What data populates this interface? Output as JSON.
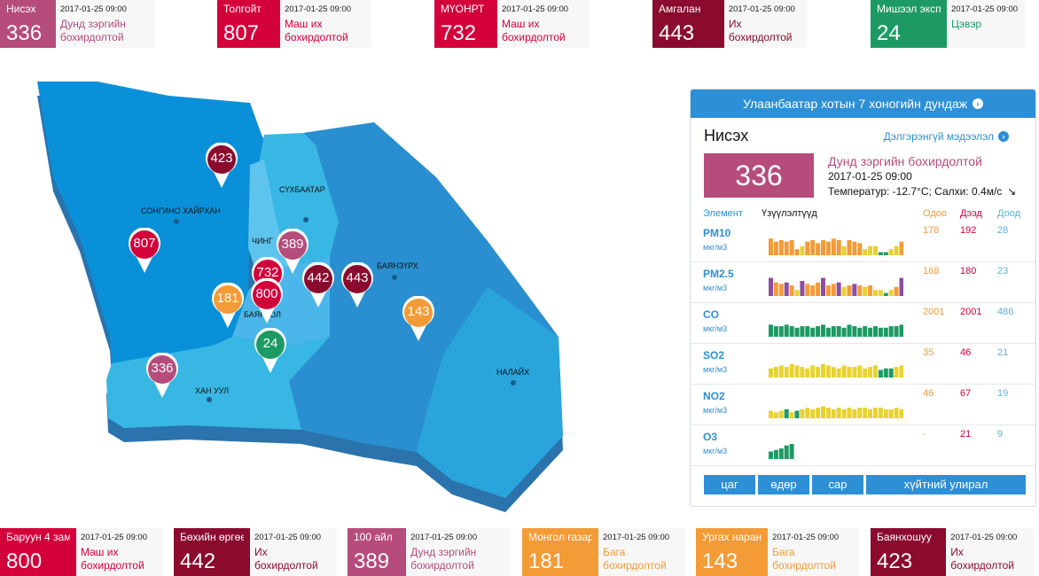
{
  "colors": {
    "unhealthy_sensitive": "#b64c7b",
    "very_unhealthy": "#d4003a",
    "hazardous": "#8a0b2e",
    "good": "#1d9a64",
    "moderate": "#f39b37",
    "accent": "#2d8fd6"
  },
  "top_cards": [
    {
      "name": "Нисэх",
      "aqi": "336",
      "time": "2017-01-25 09:00",
      "status": "Дунд зэргийн бохирдолтой",
      "color": "#b64c7b"
    },
    {
      "name": "Толгойт",
      "aqi": "807",
      "time": "2017-01-25 09:00",
      "status": "Маш их бохирдолтой",
      "color": "#d4003a"
    },
    {
      "name": "МҮОНРТ",
      "aqi": "732",
      "time": "2017-01-25 09:00",
      "status": "Маш их бохирдолтой",
      "color": "#d4003a"
    },
    {
      "name": "Амгалан",
      "aqi": "443",
      "time": "2017-01-25 09:00",
      "status": "Их бохирдолтой",
      "color": "#8a0b2e"
    },
    {
      "name": "Мишээл экспо",
      "aqi": "24",
      "time": "2017-01-25 09:00",
      "status": "Цэвэр",
      "color": "#1d9a64"
    }
  ],
  "bottom_cards": [
    {
      "name": "Баруун 4 зам",
      "aqi": "800",
      "time": "2017-01-25 09:00",
      "status": "Маш их бохирдолтой",
      "color": "#d4003a"
    },
    {
      "name": "Бөхийн өргөө",
      "aqi": "442",
      "time": "2017-01-25 09:00",
      "status": "Их бохирдолтой",
      "color": "#8a0b2e"
    },
    {
      "name": "100 айл",
      "aqi": "389",
      "time": "2017-01-25 09:00",
      "status": "Дунд зэргийн бохирдолтой",
      "color": "#b64c7b"
    },
    {
      "name": "Монгол газар",
      "aqi": "181",
      "time": "2017-01-25 09:00",
      "status": "Бага бохирдолтой",
      "color": "#f39b37"
    },
    {
      "name": "Ургах наран",
      "aqi": "143",
      "time": "2017-01-25 09:00",
      "status": "Бага бохирдолтой",
      "color": "#f39b37"
    },
    {
      "name": "Баянхошуу",
      "aqi": "423",
      "time": "2017-01-25 09:00",
      "status": "Их бохирдолтой",
      "color": "#8a0b2e"
    }
  ],
  "map": {
    "districts": [
      "СОНГИНО ХАЙРХАН",
      "СҮХБААТАР",
      "ЧИНГ",
      "БАЯНЗҮРХ",
      "БАЯНГОЛ",
      "ХАН УУЛ",
      "НАЛАЙХ"
    ],
    "pins": [
      {
        "value": "423",
        "color": "#8a0b2e"
      },
      {
        "value": "807",
        "color": "#d4003a"
      },
      {
        "value": "389",
        "color": "#b64c7b"
      },
      {
        "value": "732",
        "color": "#d4003a"
      },
      {
        "value": "800",
        "color": "#d4003a"
      },
      {
        "value": "442",
        "color": "#8a0b2e"
      },
      {
        "value": "443",
        "color": "#8a0b2e"
      },
      {
        "value": "181",
        "color": "#f39b37"
      },
      {
        "value": "143",
        "color": "#f39b37"
      },
      {
        "value": "24",
        "color": "#1d9a64"
      },
      {
        "value": "336",
        "color": "#b64c7b"
      }
    ]
  },
  "panel": {
    "header": "Улаанбаатар хотын 7 хоногийн дундаж",
    "station": "Нисэх",
    "more_link": "Дэлгэрэнгүй мэдээлэл",
    "aqi": "336",
    "status": "Дунд зэргийн бохирдолтой",
    "time": "2017-01-25 09:00",
    "weather": "Температур: -12.7°C; Салхи: 0.4м/с",
    "headers": {
      "element": "Элемент",
      "indicator": "Үзүүлэлтүүд",
      "current": "Одоо",
      "max": "Дээд",
      "min": "Доод"
    },
    "pollutants": [
      {
        "name": "PM10",
        "unit": "мкг/м3",
        "current": "178",
        "max": "192",
        "min": "28",
        "bars": [
          0.55,
          0.45,
          0.5,
          0.45,
          0.5,
          0.2,
          0.3,
          0.45,
          0.5,
          0.4,
          0.5,
          0.45,
          0.55,
          0.5,
          0.3,
          0.5,
          0.45,
          0.4,
          0.2,
          0.3,
          0.3,
          0.1,
          0.1,
          0.2,
          0.3,
          0.45
        ],
        "bar_colors": [
          "#f39b37",
          "#f39b37",
          "#f39b37",
          "#f39b37",
          "#f39b37",
          "#f39b37",
          "#e8d230",
          "#f39b37",
          "#f39b37",
          "#f39b37",
          "#f39b37",
          "#f39b37",
          "#f39b37",
          "#f39b37",
          "#e8d230",
          "#f39b37",
          "#f39b37",
          "#f39b37",
          "#e8d230",
          "#e8d230",
          "#e8d230",
          "#1d9a64",
          "#1d9a64",
          "#e8d230",
          "#e8d230",
          "#f39b37"
        ]
      },
      {
        "name": "PM2.5",
        "unit": "мкг/м3",
        "current": "168",
        "max": "180",
        "min": "23",
        "bars": [
          0.6,
          0.45,
          0.4,
          0.45,
          0.35,
          0.2,
          0.5,
          0.4,
          0.35,
          0.45,
          0.6,
          0.35,
          0.4,
          0.45,
          0.3,
          0.35,
          0.4,
          0.35,
          0.3,
          0.35,
          0.2,
          0.2,
          0.1,
          0.2,
          0.3,
          0.6
        ],
        "bar_colors": [
          "#8e4ea0",
          "#f39b37",
          "#f39b37",
          "#8e4ea0",
          "#f39b37",
          "#e8d230",
          "#8e4ea0",
          "#f39b37",
          "#f39b37",
          "#f39b37",
          "#8e4ea0",
          "#f39b37",
          "#f39b37",
          "#8e4ea0",
          "#e8d230",
          "#f39b37",
          "#8e4ea0",
          "#f39b37",
          "#e8d230",
          "#f39b37",
          "#e8d230",
          "#e8d230",
          "#1d9a64",
          "#e8d230",
          "#f39b37",
          "#8e4ea0"
        ]
      },
      {
        "name": "CO",
        "unit": "мкг/м3",
        "current": "2001",
        "max": "2001",
        "min": "486",
        "bars": [
          0.4,
          0.35,
          0.35,
          0.4,
          0.35,
          0.3,
          0.35,
          0.35,
          0.3,
          0.35,
          0.4,
          0.3,
          0.35,
          0.35,
          0.3,
          0.4,
          0.35,
          0.3,
          0.35,
          0.3,
          0.35,
          0.3,
          0.3,
          0.35,
          0.35,
          0.4
        ],
        "bar_colors": [
          "#1d9a64",
          "#1d9a64",
          "#1d9a64",
          "#1d9a64",
          "#1d9a64",
          "#1d9a64",
          "#1d9a64",
          "#1d9a64",
          "#1d9a64",
          "#1d9a64",
          "#1d9a64",
          "#1d9a64",
          "#1d9a64",
          "#1d9a64",
          "#1d9a64",
          "#1d9a64",
          "#1d9a64",
          "#1d9a64",
          "#1d9a64",
          "#1d9a64",
          "#1d9a64",
          "#1d9a64",
          "#1d9a64",
          "#1d9a64",
          "#1d9a64",
          "#1d9a64"
        ]
      },
      {
        "name": "SO2",
        "unit": "мкг/м3",
        "current": "35",
        "max": "46",
        "min": "21",
        "bars": [
          0.3,
          0.35,
          0.4,
          0.35,
          0.45,
          0.4,
          0.35,
          0.3,
          0.4,
          0.35,
          0.45,
          0.4,
          0.35,
          0.3,
          0.4,
          0.35,
          0.35,
          0.4,
          0.3,
          0.35,
          0.4,
          0.25,
          0.3,
          0.3,
          0.35,
          0.4
        ],
        "bar_colors": [
          "#e8d230",
          "#e8d230",
          "#e8d230",
          "#e8d230",
          "#e8d230",
          "#e8d230",
          "#e8d230",
          "#e8d230",
          "#e8d230",
          "#e8d230",
          "#e8d230",
          "#e8d230",
          "#e8d230",
          "#e8d230",
          "#e8d230",
          "#e8d230",
          "#e8d230",
          "#e8d230",
          "#e8d230",
          "#e8d230",
          "#e8d230",
          "#1d9a64",
          "#1d9a64",
          "#1d9a64",
          "#e8d230",
          "#e8d230"
        ]
      },
      {
        "name": "NO2",
        "unit": "мкг/м3",
        "current": "46",
        "max": "67",
        "min": "19",
        "bars": [
          0.25,
          0.2,
          0.25,
          0.3,
          0.2,
          0.25,
          0.3,
          0.35,
          0.3,
          0.35,
          0.4,
          0.35,
          0.3,
          0.35,
          0.3,
          0.35,
          0.3,
          0.35,
          0.35,
          0.3,
          0.35,
          0.35,
          0.3,
          0.3,
          0.35,
          0.3
        ],
        "bar_colors": [
          "#e8d230",
          "#e8d230",
          "#e8d230",
          "#1d9a64",
          "#e8d230",
          "#1d9a64",
          "#e8d230",
          "#e8d230",
          "#e8d230",
          "#e8d230",
          "#e8d230",
          "#e8d230",
          "#e8d230",
          "#e8d230",
          "#e8d230",
          "#e8d230",
          "#e8d230",
          "#e8d230",
          "#e8d230",
          "#e8d230",
          "#e8d230",
          "#e8d230",
          "#e8d230",
          "#e8d230",
          "#e8d230",
          "#e8d230"
        ]
      },
      {
        "name": "O3",
        "unit": "мкг/м3",
        "current": "-",
        "max": "21",
        "min": "9",
        "bars": [
          0.25,
          0.3,
          0.35,
          0.45,
          0.5
        ],
        "bar_colors": [
          "#1d9a64",
          "#1d9a64",
          "#1d9a64",
          "#1d9a64",
          "#1d9a64"
        ]
      }
    ],
    "tabs": [
      "цаг",
      "өдөр",
      "сар",
      "хүйтний улирал"
    ]
  }
}
